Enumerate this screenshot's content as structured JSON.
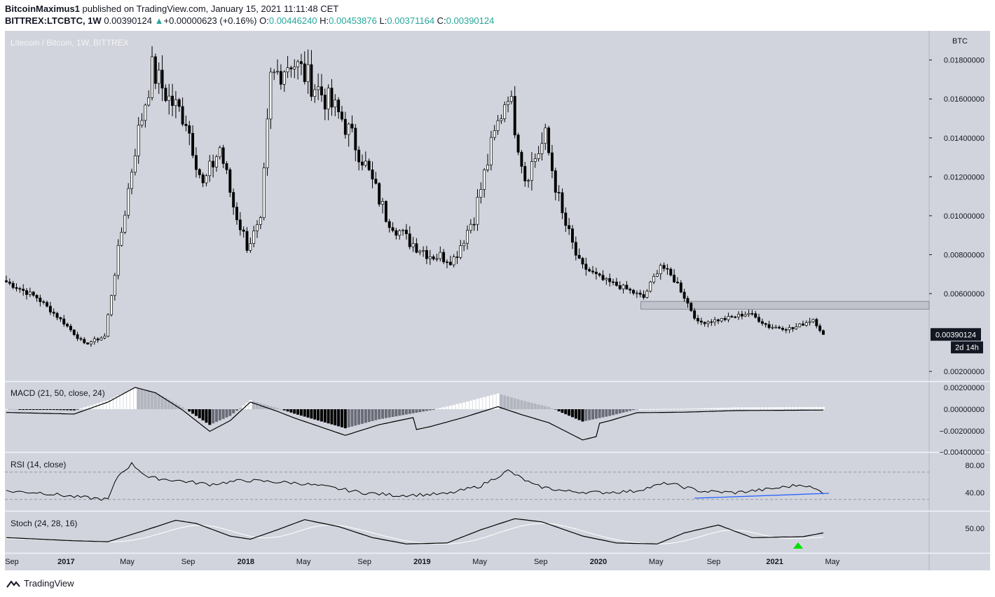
{
  "header": {
    "author": "BitcoinMaximus1",
    "published_text": "published on TradingView.com, January 15, 2021 11:11:48 CET",
    "symbol": "BITTREX:LTCBTC, 1W",
    "last": "0.00390124",
    "change": "+0.00000623 (+0.16%)",
    "o_label": "O:",
    "o_value": "0.00446240",
    "h_label": "H:",
    "h_value": "0.00453876",
    "l_label": "L:",
    "l_value": "0.00371164",
    "c_label": "C:",
    "c_value": "0.00390124"
  },
  "footer": {
    "brand": "TradingView",
    "logo_icon": "tradingview-logo-icon"
  },
  "colors": {
    "background": "#d1d4dc",
    "candle": "#000000",
    "candle_up_fill": "#ffffff",
    "rsi_trendline": "#2962ff",
    "stoch_signal": "#00e000",
    "grid": "#c0c3cc"
  },
  "chart_data": [
    {
      "type": "candlestick",
      "title": "Litecoin / Bitcoin, 1W, BITTREX",
      "currency_label": "BTC",
      "y_ticks": [
        "0.01800000",
        "0.01600000",
        "0.01400000",
        "0.01200000",
        "0.01000000",
        "0.00800000",
        "0.00600000",
        "0.00200000"
      ],
      "y_tick_values": [
        0.018,
        0.016,
        0.014,
        0.012,
        0.01,
        0.008,
        0.006,
        0.002
      ],
      "ylim": [
        0.0015,
        0.0195
      ],
      "x_ticks": [
        "Sep",
        "2017",
        "May",
        "Sep",
        "2018",
        "May",
        "Sep",
        "2019",
        "May",
        "Sep",
        "2020",
        "May",
        "Sep",
        "2021",
        "May"
      ],
      "price_label": "0.00390124",
      "countdown_label": "2d 14h",
      "resistance_zone": [
        0.0052,
        0.0056
      ],
      "anchors": [
        {
          "w": 0,
          "p": 0.0066
        },
        {
          "w": 9,
          "p": 0.0058
        },
        {
          "w": 17,
          "p": 0.0045
        },
        {
          "w": 23,
          "p": 0.0034
        },
        {
          "w": 29,
          "p": 0.0038
        },
        {
          "w": 34,
          "p": 0.0092
        },
        {
          "w": 38,
          "p": 0.0135
        },
        {
          "w": 43,
          "p": 0.0175
        },
        {
          "w": 48,
          "p": 0.016
        },
        {
          "w": 53,
          "p": 0.015
        },
        {
          "w": 58,
          "p": 0.0115
        },
        {
          "w": 63,
          "p": 0.0135
        },
        {
          "w": 67,
          "p": 0.0105
        },
        {
          "w": 71,
          "p": 0.0085
        },
        {
          "w": 75,
          "p": 0.0095
        },
        {
          "w": 78,
          "p": 0.017
        },
        {
          "w": 84,
          "p": 0.018
        },
        {
          "w": 92,
          "p": 0.0165
        },
        {
          "w": 99,
          "p": 0.015
        },
        {
          "w": 105,
          "p": 0.013
        },
        {
          "w": 112,
          "p": 0.01
        },
        {
          "w": 118,
          "p": 0.0088
        },
        {
          "w": 125,
          "p": 0.008
        },
        {
          "w": 132,
          "p": 0.0078
        },
        {
          "w": 138,
          "p": 0.01
        },
        {
          "w": 143,
          "p": 0.0135
        },
        {
          "w": 148,
          "p": 0.0165
        },
        {
          "w": 153,
          "p": 0.012
        },
        {
          "w": 159,
          "p": 0.014
        },
        {
          "w": 164,
          "p": 0.01
        },
        {
          "w": 169,
          "p": 0.0075
        },
        {
          "w": 176,
          "p": 0.0067
        },
        {
          "w": 182,
          "p": 0.0063
        },
        {
          "w": 188,
          "p": 0.0058
        },
        {
          "w": 193,
          "p": 0.0075
        },
        {
          "w": 198,
          "p": 0.0065
        },
        {
          "w": 204,
          "p": 0.0045
        },
        {
          "w": 212,
          "p": 0.0047
        },
        {
          "w": 219,
          "p": 0.005
        },
        {
          "w": 225,
          "p": 0.0043
        },
        {
          "w": 232,
          "p": 0.0042
        },
        {
          "w": 238,
          "p": 0.0047
        },
        {
          "w": 241,
          "p": 0.0039
        }
      ]
    },
    {
      "type": "macd",
      "title": "MACD (21, 50, close, 24)",
      "y_ticks": [
        "0.00200000",
        "0.00000000",
        "−0.00200000",
        "−0.00400000"
      ]
    },
    {
      "type": "rsi",
      "title": "RSI (14, close)",
      "y_ticks": [
        "80.00",
        "40.00"
      ],
      "bands": [
        70,
        30
      ]
    },
    {
      "type": "stoch",
      "title": "Stoch (24, 28, 16)",
      "y_ticks": [
        "50.00"
      ]
    }
  ]
}
